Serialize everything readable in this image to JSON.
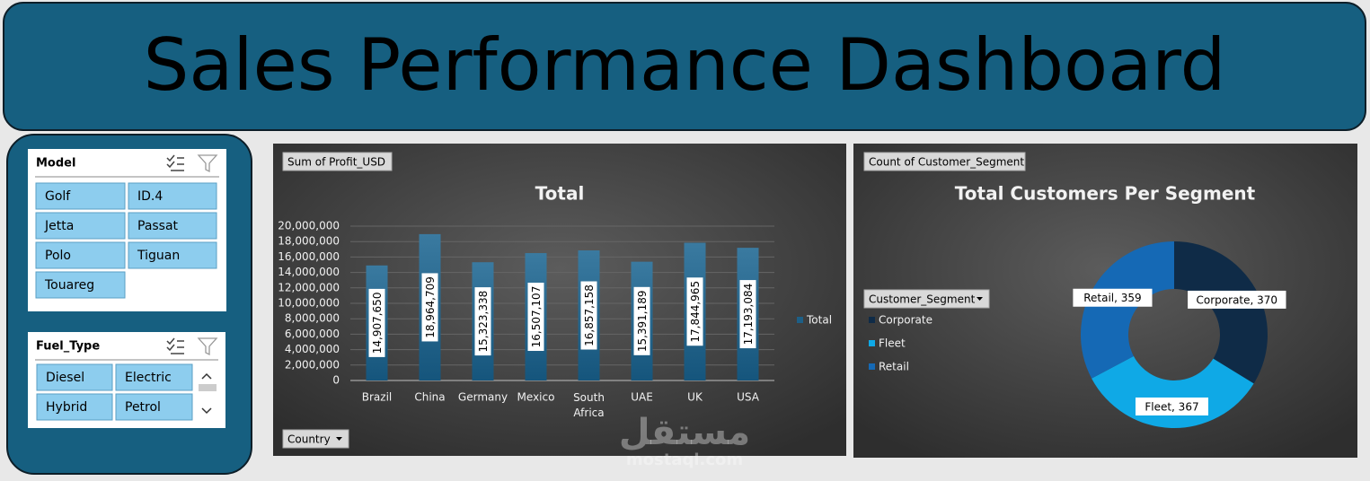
{
  "header": {
    "title": "Sales Performance Dashboard"
  },
  "slicers": [
    {
      "title": "Model",
      "items": [
        "Golf",
        "ID.4",
        "Jetta",
        "Passat",
        "Polo",
        "Tiguan",
        "Touareg"
      ]
    },
    {
      "title": "Fuel_Type",
      "items": [
        "Diesel",
        "Electric",
        "Hybrid",
        "Petrol"
      ]
    }
  ],
  "chart_data": [
    {
      "type": "bar",
      "title": "Total",
      "value_field": "Sum of Profit_USD",
      "axis_field": "Country",
      "categories": [
        "Brazil",
        "China",
        "Germany",
        "Mexico",
        "South Africa",
        "UAE",
        "UK",
        "USA"
      ],
      "series": [
        {
          "name": "Total",
          "color": "#1d5f86",
          "values": [
            14907650,
            18964709,
            15323338,
            16507107,
            16857158,
            15391189,
            17844965,
            17193084
          ],
          "value_labels": [
            "14,907,650",
            "18,964,709",
            "15,323,338",
            "16,507,107",
            "16,857,158",
            "15,391,189",
            "17,844,965",
            "17,193,084"
          ]
        }
      ],
      "ylim": [
        0,
        20000000
      ],
      "yticks": [
        0,
        {
          "value": 2000000,
          "label": "2,000,000"
        },
        {
          "value": 4000000,
          "label": "4,000,000"
        },
        {
          "value": 6000000,
          "label": "6,000,000"
        },
        {
          "value": 8000000,
          "label": "8,000,000"
        },
        {
          "value": 10000000,
          "label": "10,000,000"
        },
        {
          "value": 12000000,
          "label": "12,000,000"
        },
        {
          "value": 14000000,
          "label": "14,000,000"
        },
        {
          "value": 16000000,
          "label": "16,000,000"
        },
        {
          "value": 18000000,
          "label": "18,000,000"
        },
        {
          "value": 20000000,
          "label": "20,000,000"
        }
      ],
      "grid": true,
      "legend": "right"
    },
    {
      "type": "donut",
      "title": "Total Customers Per Segment",
      "value_field": "Count of Customer_Segment",
      "legend_field": "Customer_Segment",
      "categories": [
        "Corporate",
        "Fleet",
        "Retail"
      ],
      "values": [
        370,
        367,
        359
      ],
      "value_labels": [
        "Corporate, 370",
        "Fleet, 367",
        "Retail, 359"
      ],
      "colors": [
        "#0f2b47",
        "#0fa9e6",
        "#1569b5"
      ],
      "legend": "left"
    }
  ],
  "watermark": {
    "brand": "مستقل",
    "url": "mostaql.com"
  }
}
